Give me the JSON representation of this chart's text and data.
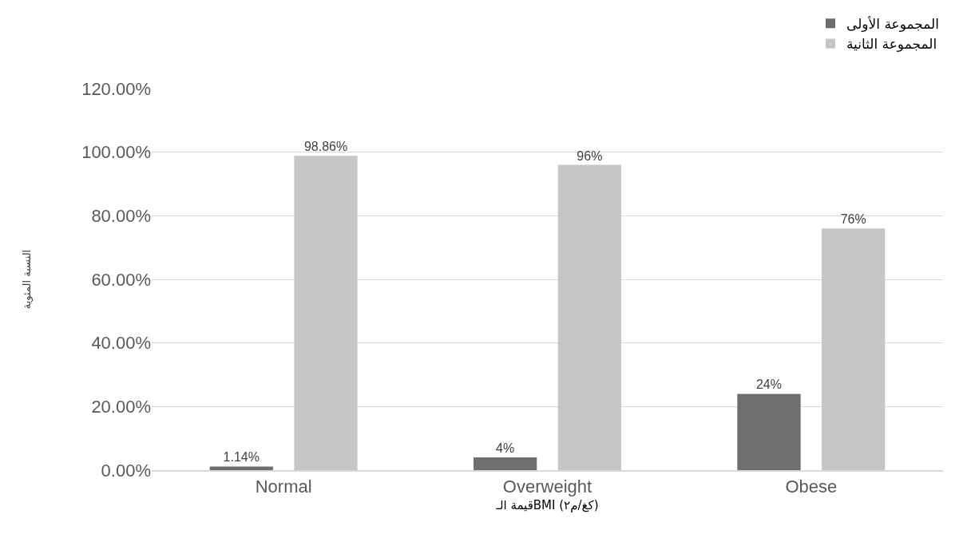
{
  "chart_data": {
    "type": "bar",
    "xlabel": "قيمة الـBMI (كغ/م٢)",
    "ylabel": "النسبة المئوية",
    "categories": [
      "Normal",
      "Overweight",
      "Obese"
    ],
    "series": [
      {
        "name": "المجموعة الأولى",
        "color": "#6e6e6e",
        "values": [
          1.14,
          4,
          24
        ],
        "value_labels": [
          "1.14%",
          "4%",
          "24%"
        ]
      },
      {
        "name": "المجموعة الثانية",
        "color": "#c6c6c6",
        "values": [
          98.86,
          96,
          76
        ],
        "value_labels": [
          "98.86%",
          "96%",
          "76%"
        ]
      }
    ],
    "ylim": [
      0,
      120
    ],
    "yticks": [
      {
        "value": 0,
        "label": "0.00%"
      },
      {
        "value": 20,
        "label": "20.00%"
      },
      {
        "value": 40,
        "label": "40.00%"
      },
      {
        "value": 60,
        "label": "60.00%"
      },
      {
        "value": 80,
        "label": "80.00%"
      },
      {
        "value": 100,
        "label": "100.00%"
      },
      {
        "value": 120,
        "label": "120.00%"
      }
    ],
    "grid": "y",
    "legend": "top right"
  }
}
